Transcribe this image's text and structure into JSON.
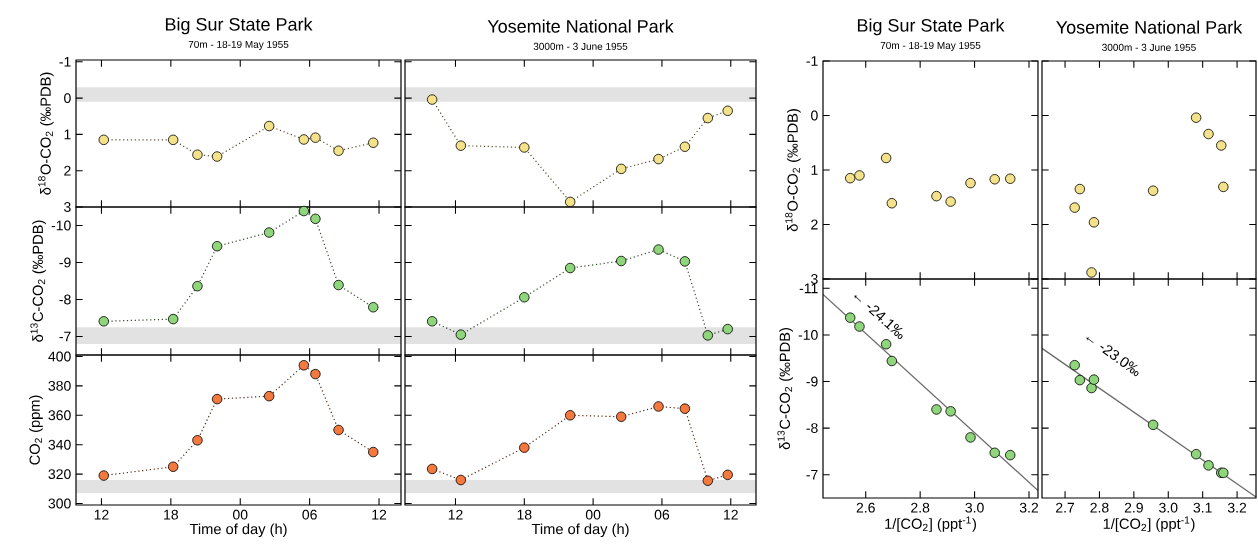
{
  "chart_data": [
    {
      "type": "line",
      "title": "Big Sur State Park",
      "subtitle": "70m - 18-19 May 1955",
      "ylabel": "δ$^{18}$O-CO$_{2}$ (‰PDB)",
      "marker": "circle",
      "line_style": "dotted",
      "tick_labels": "y",
      "x": [
        "1955-05-18T12:12",
        "1955-05-18T18:12",
        "1955-05-18T20:18",
        "1955-05-18T22:00",
        "1955-05-19T02:30",
        "1955-05-19T05:30",
        "1955-05-19T06:30",
        "1955-05-19T08:30",
        "1955-05-19T11:30"
      ],
      "xlim": [
        "1955-05-18T09:48",
        "1955-05-19T13:54"
      ],
      "xticks": [
        {
          "value": "1955-05-18T12:00",
          "label": null
        },
        {
          "value": "1955-05-18T18:00",
          "label": null
        },
        {
          "value": "1955-05-19T00:00",
          "label": null
        },
        {
          "value": "1955-05-19T06:00",
          "label": null
        },
        {
          "value": "1955-05-19T12:00",
          "label": null
        }
      ],
      "ylim": [
        3,
        -1.05
      ],
      "yticks": [
        -1,
        0,
        1,
        2,
        3
      ],
      "series": [
        {
          "color": "#f3e28a",
          "values": [
            1.15,
            1.15,
            1.56,
            1.61,
            0.77,
            1.14,
            1.09,
            1.45,
            1.23
          ]
        }
      ],
      "bands": [
        {
          "axis": "y",
          "from": -0.3,
          "to": 0.1,
          "color": "#e2e2e2"
        }
      ]
    },
    {
      "type": "line",
      "title": "Yosemite National Park",
      "subtitle": "3000m - 3 June 1955",
      "marker": "circle",
      "line_style": "dotted",
      "tick_labels": false,
      "x": [
        "1955-06-03T09:58",
        "1955-06-03T12:28",
        "1955-06-03T18:00",
        "1955-06-03T22:00",
        "1955-06-04T02:27",
        "1955-06-04T05:42",
        "1955-06-04T08:00",
        "1955-06-04T10:00",
        "1955-06-04T11:44"
      ],
      "xlim": [
        "1955-06-03T07:36",
        "1955-06-04T14:12"
      ],
      "xticks": [
        {
          "value": "1955-06-03T12:00",
          "label": null
        },
        {
          "value": "1955-06-03T18:00",
          "label": null
        },
        {
          "value": "1955-06-04T00:00",
          "label": null
        },
        {
          "value": "1955-06-04T06:00",
          "label": null
        },
        {
          "value": "1955-06-04T12:00",
          "label": null
        }
      ],
      "ylim": [
        3,
        -1.05
      ],
      "yticks": [
        {
          "value": -1,
          "label": null
        },
        {
          "value": 0,
          "label": null
        },
        {
          "value": 1,
          "label": null
        },
        {
          "value": 2,
          "label": null
        },
        {
          "value": 3,
          "label": null
        }
      ],
      "series": [
        {
          "color": "#f3e28a",
          "values": [
            0.04,
            1.31,
            1.36,
            2.86,
            1.95,
            1.68,
            1.34,
            0.55,
            0.35
          ]
        }
      ],
      "bands": [
        {
          "axis": "y",
          "from": -0.3,
          "to": 0.1,
          "color": "#e2e2e2"
        }
      ]
    },
    {
      "type": "scatter",
      "title": "Big Sur State Park",
      "subtitle": "70m - 18-19 May 1955",
      "ylabel": "δ$^{18}$O-CO$_{2}$ (‰PDB)",
      "marker": "circle",
      "tick_labels": "y",
      "xlim": [
        2.443,
        3.233
      ],
      "xticks": [
        {
          "value": 2.6,
          "label": null
        },
        {
          "value": 2.8,
          "label": null
        },
        {
          "value": 3,
          "label": null
        },
        {
          "value": 3.2,
          "label": null
        }
      ],
      "ylim": [
        3,
        -1
      ],
      "yticks": [
        -1,
        0,
        1,
        2,
        3
      ],
      "series": [
        {
          "color": "#f3e28a",
          "x": [
            2.543,
            2.577,
            2.675,
            2.696,
            2.86,
            2.912,
            2.985,
            3.074,
            3.131
          ],
          "values": [
            1.15,
            1.1,
            0.78,
            1.61,
            1.48,
            1.58,
            1.24,
            1.17,
            1.16
          ]
        }
      ]
    },
    {
      "type": "scatter",
      "title": "Yosemite National Park",
      "subtitle": "3000m - 3 June 1955",
      "marker": "circle",
      "tick_labels": false,
      "xlim": [
        2.633,
        3.255
      ],
      "xticks": [
        {
          "value": 2.7,
          "label": null
        },
        {
          "value": 2.8,
          "label": null
        },
        {
          "value": 2.9,
          "label": null
        },
        {
          "value": 3,
          "label": null
        },
        {
          "value": 3.1,
          "label": null
        },
        {
          "value": 3.2,
          "label": null
        }
      ],
      "ylim": [
        3,
        -1
      ],
      "yticks": [
        {
          "value": -1,
          "label": null
        },
        {
          "value": 0,
          "label": null
        },
        {
          "value": 1,
          "label": null
        },
        {
          "value": 2,
          "label": null
        },
        {
          "value": 3,
          "label": null
        }
      ],
      "series": [
        {
          "color": "#f3e28a",
          "x": [
            2.728,
            2.743,
            2.784,
            2.777,
            2.956,
            3.081,
            3.117,
            3.154,
            3.16
          ],
          "values": [
            1.69,
            1.35,
            1.96,
            2.88,
            1.38,
            0.04,
            0.34,
            0.55,
            1.31
          ]
        }
      ]
    },
    {
      "type": "line",
      "ylabel": "δ$^{13}$C-CO$_{2}$ (‰PDB)",
      "marker": "circle",
      "line_style": "dotted",
      "tick_labels": "y",
      "x": [
        "1955-05-18T12:12",
        "1955-05-18T18:12",
        "1955-05-18T20:18",
        "1955-05-18T22:00",
        "1955-05-19T02:30",
        "1955-05-19T05:30",
        "1955-05-19T06:30",
        "1955-05-19T08:30",
        "1955-05-19T11:30"
      ],
      "xlim": [
        "1955-05-18T09:48",
        "1955-05-19T13:54"
      ],
      "xticks": [
        {
          "value": "1955-05-18T12:00",
          "label": null
        },
        {
          "value": "1955-05-18T18:00",
          "label": null
        },
        {
          "value": "1955-05-19T00:00",
          "label": null
        },
        {
          "value": "1955-05-19T06:00",
          "label": null
        },
        {
          "value": "1955-05-19T12:00",
          "label": null
        }
      ],
      "ylim": [
        -6.5,
        -10.5
      ],
      "yticks": [
        -10,
        -9,
        -8,
        -7
      ],
      "series": [
        {
          "color": "#8fd57c",
          "values": [
            -7.41,
            -7.47,
            -8.36,
            -9.44,
            -9.81,
            -10.39,
            -10.18,
            -8.39,
            -7.79
          ]
        }
      ],
      "bands": [
        {
          "axis": "y",
          "from": -7.25,
          "to": -6.8,
          "color": "#e2e2e2"
        }
      ]
    },
    {
      "type": "line",
      "marker": "circle",
      "line_style": "dotted",
      "tick_labels": false,
      "x": [
        "1955-06-03T09:58",
        "1955-06-03T12:28",
        "1955-06-03T18:00",
        "1955-06-03T22:00",
        "1955-06-04T02:27",
        "1955-06-04T05:42",
        "1955-06-04T08:00",
        "1955-06-04T10:00",
        "1955-06-04T11:44"
      ],
      "xlim": [
        "1955-06-03T07:36",
        "1955-06-04T14:12"
      ],
      "xticks": [
        {
          "value": "1955-06-03T12:00",
          "label": null
        },
        {
          "value": "1955-06-03T18:00",
          "label": null
        },
        {
          "value": "1955-06-04T00:00",
          "label": null
        },
        {
          "value": "1955-06-04T06:00",
          "label": null
        },
        {
          "value": "1955-06-04T12:00",
          "label": null
        }
      ],
      "ylim": [
        -6.5,
        -10.5
      ],
      "yticks": [
        {
          "value": -10,
          "label": null
        },
        {
          "value": -9,
          "label": null
        },
        {
          "value": -8,
          "label": null
        },
        {
          "value": -7,
          "label": null
        }
      ],
      "series": [
        {
          "color": "#8fd57c",
          "values": [
            -7.41,
            -7.05,
            -8.06,
            -8.85,
            -9.04,
            -9.35,
            -9.03,
            -7.03,
            -7.2
          ]
        }
      ],
      "bands": [
        {
          "axis": "y",
          "from": -7.25,
          "to": -6.8,
          "color": "#e2e2e2"
        }
      ]
    },
    {
      "type": "scatter",
      "xlabel": "1/[CO$_{2}$] (ppt$^{-1}$)",
      "ylabel": "δ$^{13}$C-CO$_{2}$ (‰PDB)",
      "marker": "circle",
      "xlim": [
        2.443,
        3.233
      ],
      "xticks": [
        2.6,
        2.8,
        {
          "value": 3,
          "label": "3.0"
        },
        3.2
      ],
      "ylim": [
        -6.5,
        -11.2
      ],
      "yticks": [
        -11,
        -10,
        -9,
        -8,
        -7
      ],
      "series": [
        {
          "color": "#8fd57c",
          "x": [
            2.543,
            2.577,
            2.675,
            2.696,
            2.86,
            2.912,
            2.985,
            3.074,
            3.131
          ],
          "values": [
            -10.37,
            -10.18,
            -9.8,
            -9.44,
            -8.4,
            -8.36,
            -7.8,
            -7.47,
            -7.42
          ]
        },
        {
          "type": "line",
          "marker": "none",
          "color": "#6b6b6b",
          "x": [
            2.443,
            3.233
          ],
          "values": [
            -10.87,
            -6.66
          ]
        }
      ],
      "annotations": [
        "← -24.1‰"
      ]
    },
    {
      "type": "scatter",
      "xlabel": "1/[CO$_{2}$] (ppt$^{-1}$)",
      "marker": "circle",
      "tick_labels": "x",
      "xlim": [
        2.633,
        3.255
      ],
      "xticks": [
        2.7,
        2.8,
        2.9,
        {
          "value": 3,
          "label": "3.0"
        },
        3.1,
        3.2
      ],
      "ylim": [
        -6.5,
        -11.2
      ],
      "yticks": [
        {
          "value": -11,
          "label": null
        },
        {
          "value": -10,
          "label": null
        },
        {
          "value": -9,
          "label": null
        },
        {
          "value": -8,
          "label": null
        },
        {
          "value": -7,
          "label": null
        }
      ],
      "series": [
        {
          "color": "#8fd57c",
          "x": [
            3.081,
            3.154,
            2.956,
            2.777,
            2.784,
            2.728,
            2.743,
            3.16,
            3.117
          ],
          "values": [
            -7.44,
            -7.04,
            -8.07,
            -8.86,
            -9.04,
            -9.35,
            -9.03,
            -7.04,
            -7.2
          ]
        },
        {
          "type": "line",
          "marker": "none",
          "color": "#6b6b6b",
          "x": [
            2.633,
            3.255
          ],
          "values": [
            -9.71,
            -6.52
          ]
        }
      ],
      "annotations": [
        "← -23.0‰"
      ]
    },
    {
      "type": "line",
      "xlabel": "Time of day (h)",
      "ylabel": "CO$_{2}$ (ppm)",
      "marker": "circle",
      "line_style": "dotted",
      "x": [
        "1955-05-18T12:12",
        "1955-05-18T18:12",
        "1955-05-18T20:18",
        "1955-05-18T22:00",
        "1955-05-19T02:30",
        "1955-05-19T05:30",
        "1955-05-19T06:30",
        "1955-05-19T08:30",
        "1955-05-19T11:30"
      ],
      "xlim": [
        "1955-05-18T09:48",
        "1955-05-19T13:54"
      ],
      "xticks": [
        {
          "value": "1955-05-18T12:00",
          "label": "12"
        },
        {
          "value": "1955-05-18T18:00",
          "label": "18"
        },
        {
          "value": "1955-05-19T00:00",
          "label": "00"
        },
        {
          "value": "1955-05-19T06:00",
          "label": "06"
        },
        {
          "value": "1955-05-19T12:00",
          "label": "12"
        }
      ],
      "ylim": [
        299,
        401
      ],
      "yticks": [
        300,
        320,
        340,
        360,
        380,
        400
      ],
      "series": [
        {
          "color": "#f3793f",
          "values": [
            319,
            325,
            343,
            371,
            373,
            394,
            388,
            350,
            335
          ]
        }
      ],
      "bands": [
        {
          "axis": "y",
          "from": 307,
          "to": 316,
          "color": "#e2e2e2"
        }
      ]
    },
    {
      "type": "line",
      "xlabel": "Time of day (h)",
      "marker": "circle",
      "line_style": "dotted",
      "tick_labels": "x",
      "x": [
        "1955-06-03T09:58",
        "1955-06-03T12:28",
        "1955-06-03T18:00",
        "1955-06-03T22:00",
        "1955-06-04T02:27",
        "1955-06-04T05:42",
        "1955-06-04T08:00",
        "1955-06-04T10:00",
        "1955-06-04T11:44"
      ],
      "xlim": [
        "1955-06-03T07:36",
        "1955-06-04T14:12"
      ],
      "xticks": [
        {
          "value": "1955-06-03T12:00",
          "label": "12"
        },
        {
          "value": "1955-06-03T18:00",
          "label": "18"
        },
        {
          "value": "1955-06-04T00:00",
          "label": "00"
        },
        {
          "value": "1955-06-04T06:00",
          "label": "06"
        },
        {
          "value": "1955-06-04T12:00",
          "label": "12"
        }
      ],
      "ylim": [
        299,
        401
      ],
      "yticks": [
        {
          "value": 300,
          "label": null
        },
        {
          "value": 320,
          "label": null
        },
        {
          "value": 340,
          "label": null
        },
        {
          "value": 360,
          "label": null
        },
        {
          "value": 380,
          "label": null
        },
        {
          "value": 400,
          "label": null
        }
      ],
      "series": [
        {
          "color": "#f3793f",
          "values": [
            323.5,
            316,
            338,
            360,
            359,
            366,
            364.5,
            315.5,
            319.5
          ]
        }
      ],
      "bands": [
        {
          "axis": "y",
          "from": 307,
          "to": 316,
          "color": "#e2e2e2"
        }
      ]
    }
  ]
}
